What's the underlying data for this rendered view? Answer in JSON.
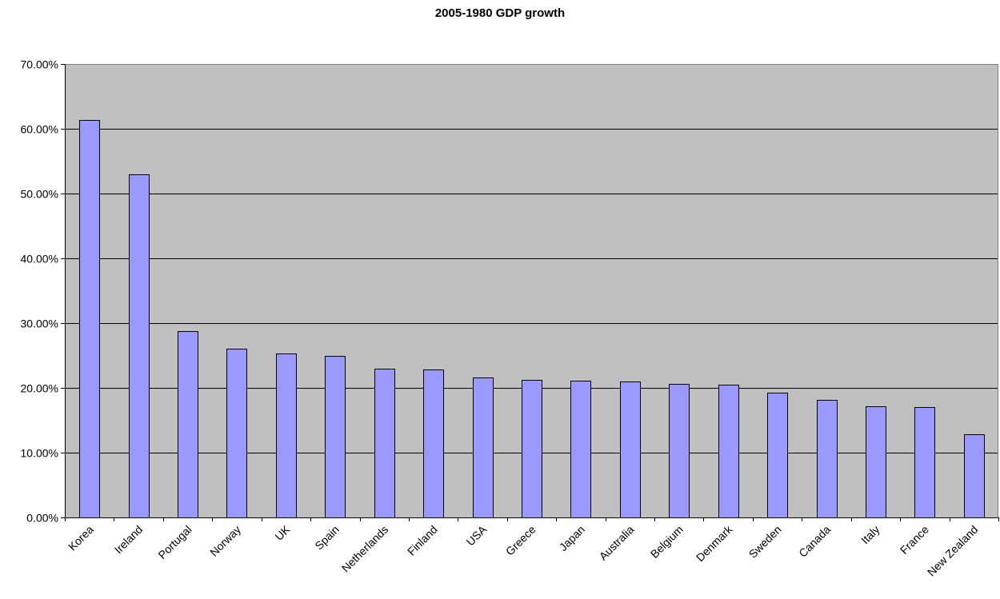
{
  "chart_data": {
    "type": "bar",
    "title": "2005-1980 GDP growth",
    "xlabel": "",
    "ylabel": "",
    "categories": [
      "Korea",
      "Ireland",
      "Portugal",
      "Norway",
      "UK",
      "Spain",
      "Netherlands",
      "Finland",
      "USA",
      "Greece",
      "Japan",
      "Australia",
      "Belgium",
      "Denmark",
      "Sweden",
      "Canada",
      "Italy",
      "France",
      "New Zealand"
    ],
    "values": [
      0.614,
      0.53,
      0.288,
      0.26,
      0.253,
      0.25,
      0.23,
      0.228,
      0.216,
      0.212,
      0.211,
      0.21,
      0.206,
      0.205,
      0.193,
      0.182,
      0.171,
      0.17,
      0.129
    ],
    "ylim": [
      0,
      0.7
    ],
    "y_ticks": [
      0,
      0.1,
      0.2,
      0.3,
      0.4,
      0.5,
      0.6,
      0.7
    ],
    "y_tick_labels": [
      "0.00%",
      "10.00%",
      "20.00%",
      "30.00%",
      "40.00%",
      "50.00%",
      "60.00%",
      "70.00%"
    ],
    "grid": true,
    "legend": "none",
    "colors": {
      "plot_background": "#c0c0c0",
      "bar_fill": "#9999ff",
      "bar_stroke": "#000000",
      "gridline": "#000000"
    }
  }
}
